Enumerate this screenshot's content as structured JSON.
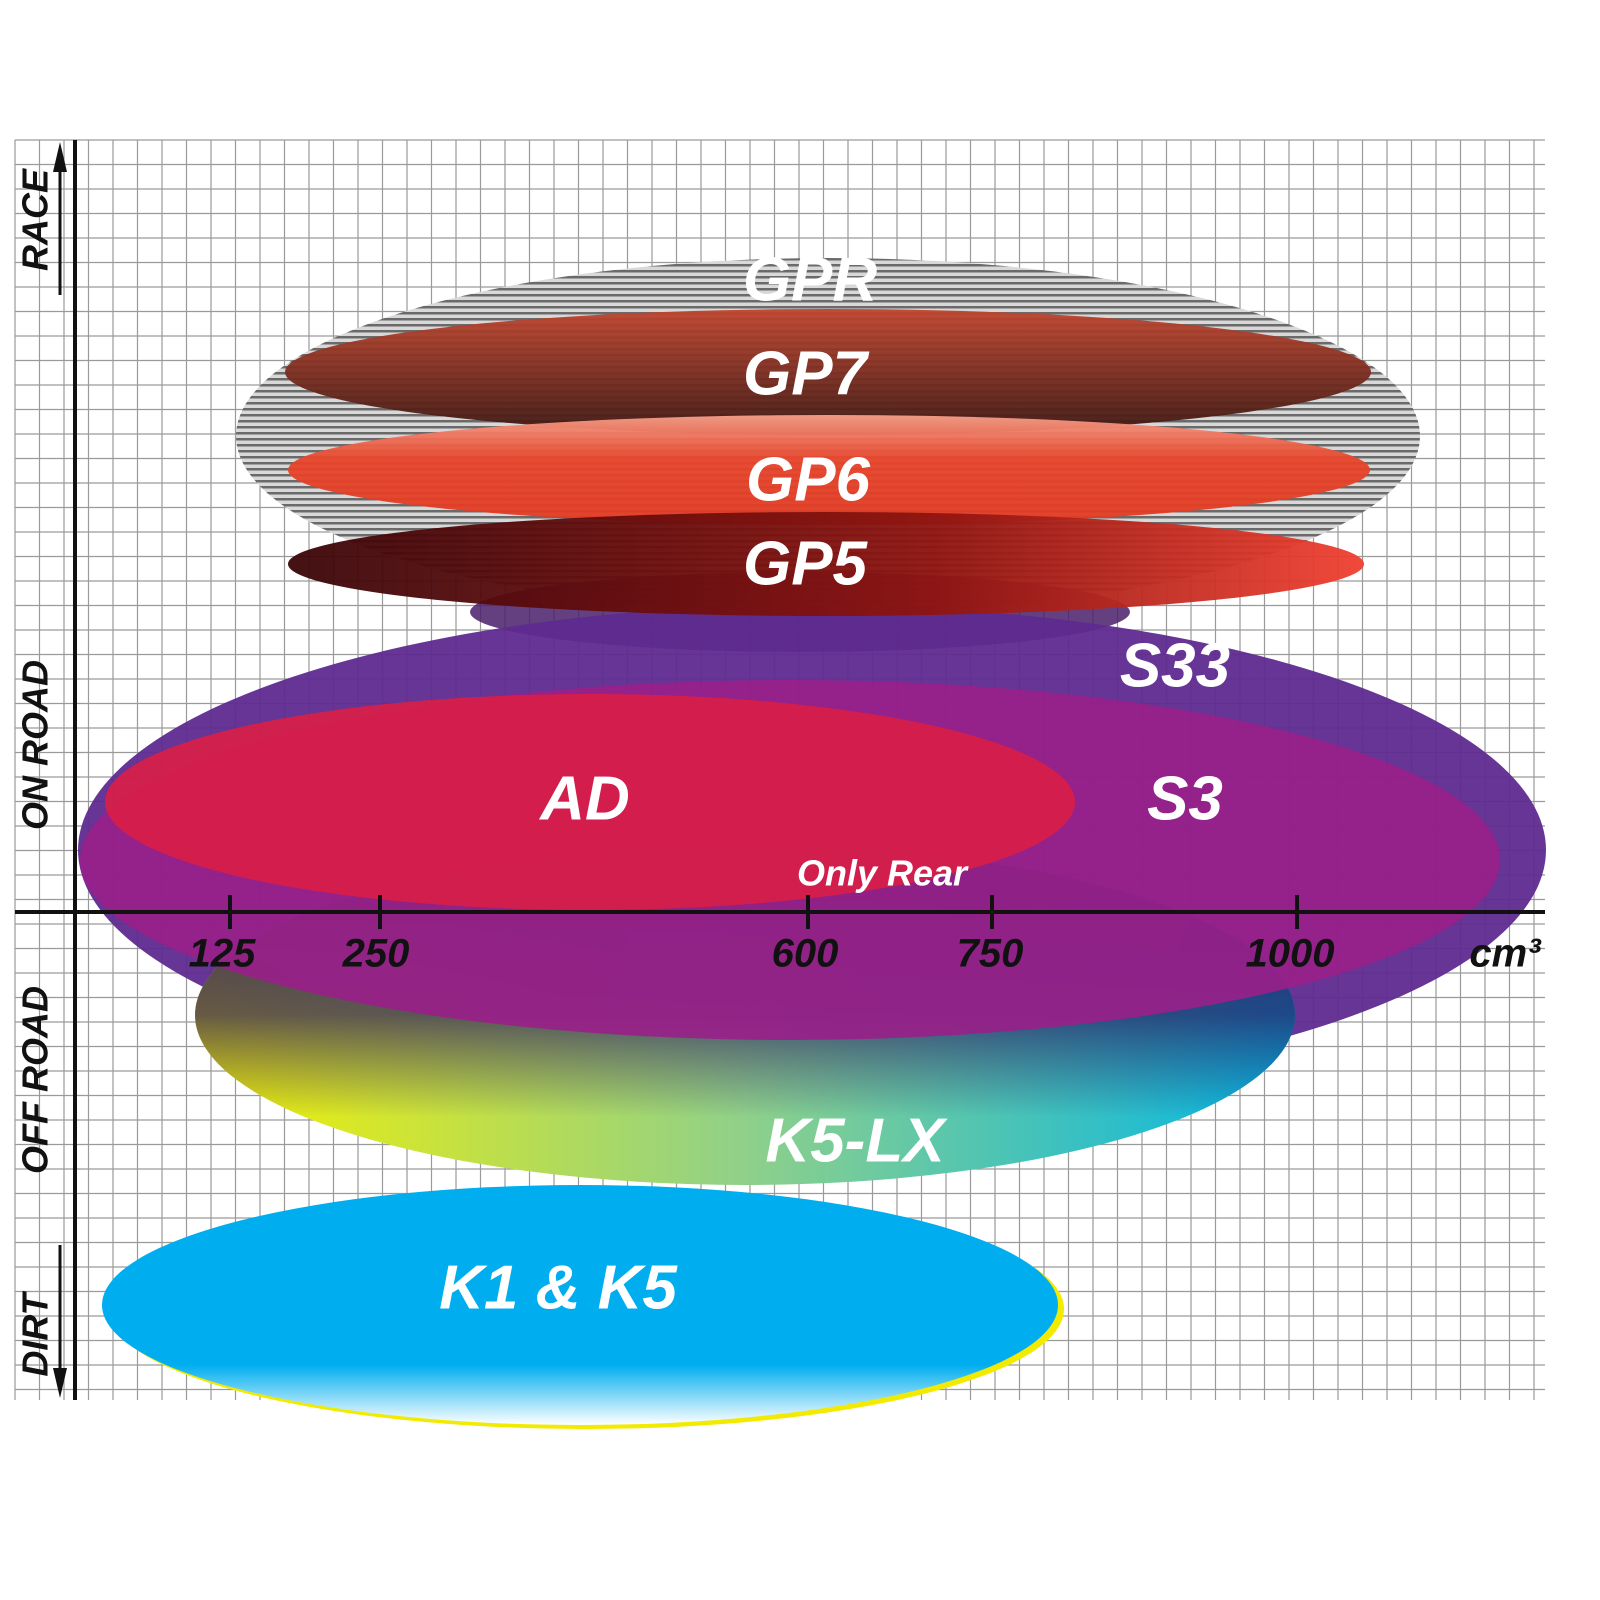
{
  "axis": {
    "y_labels": [
      "RACE",
      "ON ROAD",
      "OFF ROAD",
      "DIRT"
    ],
    "x_ticks": [
      "125",
      "250",
      "600",
      "750",
      "1000"
    ],
    "x_unit": "cm³"
  },
  "tires": [
    "GPR",
    "GP7",
    "GP6",
    "GP5",
    "S33",
    "S3",
    "AD",
    "Only Rear",
    "K5-LX",
    "K1 & K5"
  ]
}
